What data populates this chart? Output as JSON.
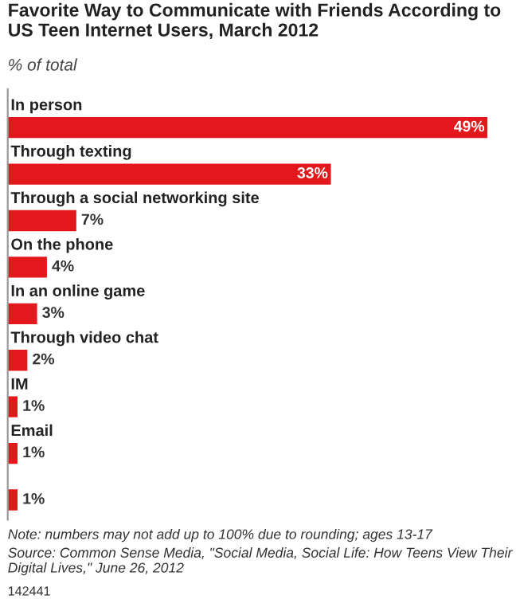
{
  "chart_data": {
    "type": "bar",
    "orientation": "horizontal",
    "title": "Favorite Way to Communicate with Friends According to US Teen Internet Users, March 2012",
    "subtitle": "% of total",
    "categories": [
      "In person",
      "Through texting",
      "Through a social networking site",
      "On the phone",
      "In an online game",
      "Through video chat",
      "IM",
      "Email",
      null
    ],
    "values": [
      49,
      33,
      7,
      4,
      3,
      2,
      1,
      1,
      1
    ],
    "value_labels": [
      "49%",
      "33%",
      "7%",
      "4%",
      "3%",
      "2%",
      "1%",
      "1%",
      "1%"
    ],
    "color": "#e3181d",
    "xlim": [
      0,
      49
    ],
    "legend": false,
    "annotations": [
      "Note: numbers may not add up to 100% due to rounding; ages 13-17",
      "Source: Common Sense Media, \"Social Media, Social Life: How Teens View Their Digital Lives,\" June 26, 2012",
      "142441"
    ]
  }
}
